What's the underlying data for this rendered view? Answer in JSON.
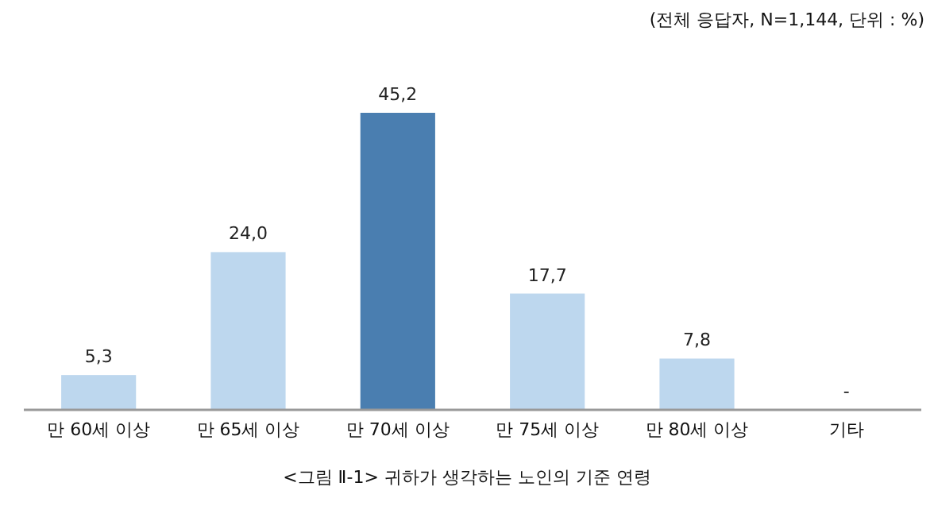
{
  "chart_data": {
    "type": "bar",
    "categories": [
      "만 60세 이상",
      "만 65세 이상",
      "만 70세 이상",
      "만 75세 이상",
      "만 80세 이상",
      "기타"
    ],
    "values": [
      5.3,
      24.0,
      45.2,
      17.7,
      7.8,
      null
    ],
    "colors": [
      "#bdd7ee",
      "#bdd7ee",
      "#4a7eb0",
      "#bdd7ee",
      "#bdd7ee",
      null
    ],
    "value_labels": [
      "5,3",
      "24,0",
      "45,2",
      "17,7",
      "7,8",
      "-"
    ],
    "annotations": [
      "(전체 응답자, N=1,144, 단위 : %)",
      "<그림 Ⅱ-1> 귀하가 생각하는 노인의 기준 연령"
    ]
  }
}
